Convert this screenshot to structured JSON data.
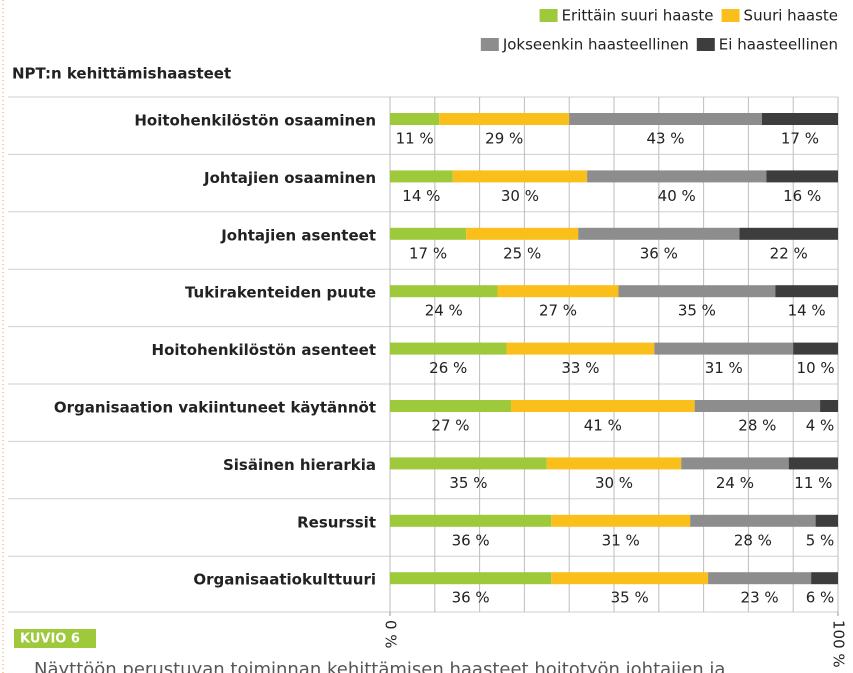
{
  "chart_data": {
    "type": "stacked_barh",
    "subtitle": "NPT:n kehittämishaasteet",
    "categories": [
      "Hoitohenkilöstön osaaminen",
      "Johtajien osaaminen",
      "Johtajien asenteet",
      "Tukirakenteiden puute",
      "Hoitohenkilöstön asenteet",
      "Organisaation vakiintuneet käytännöt",
      "Sisäinen hierarkia",
      "Resurssit",
      "Organisaatiokulttuuri"
    ],
    "series": [
      {
        "name": "Erittäin suuri haaste",
        "color": "#9dc93b",
        "values": [
          11,
          14,
          17,
          24,
          26,
          27,
          35,
          36,
          36
        ],
        "value_labels": [
          "11 %",
          "14 %",
          "17 %",
          "24 %",
          "26 %",
          "27 %",
          "35 %",
          "36 %",
          "36 %"
        ]
      },
      {
        "name": "Suuri haaste",
        "color": "#fbbf1b",
        "values": [
          29,
          30,
          25,
          27,
          33,
          41,
          30,
          31,
          35
        ],
        "value_labels": [
          "29 %",
          "30 %",
          "25 %",
          "27 %",
          "33 %",
          "41 %",
          "30 %",
          "31 %",
          "35 %"
        ]
      },
      {
        "name": "Jokseenkin haasteellinen",
        "color": "#8d8d8d",
        "values": [
          43,
          40,
          36,
          35,
          31,
          28,
          24,
          28,
          23
        ],
        "value_labels": [
          "43 %",
          "40 %",
          "36 %",
          "35 %",
          "31 %",
          "28 %",
          "24 %",
          "28 %",
          "23 %"
        ]
      },
      {
        "name": "Ei haasteellinen",
        "color": "#3d3d3d",
        "values": [
          17,
          16,
          22,
          14,
          10,
          4,
          11,
          5,
          6
        ],
        "value_labels": [
          "17 %",
          "16 %",
          "22 %",
          "14 %",
          "10 %",
          "4 %",
          "11 %",
          "5 %",
          "6 %"
        ]
      }
    ],
    "xlim": [
      0,
      100
    ],
    "xticks": [
      {
        "value": 0,
        "label": "0 %"
      },
      {
        "value": 100,
        "label": "100 %"
      }
    ],
    "xgrid": [
      0,
      10,
      20,
      30,
      40,
      50,
      60,
      70,
      80,
      90,
      100
    ],
    "legend": "top-right",
    "figure_label": "KUVIO 6",
    "caption": "Näyttöön perustuvan toiminnan kehittämisen haasteet hoitotyön johtajien ja"
  }
}
